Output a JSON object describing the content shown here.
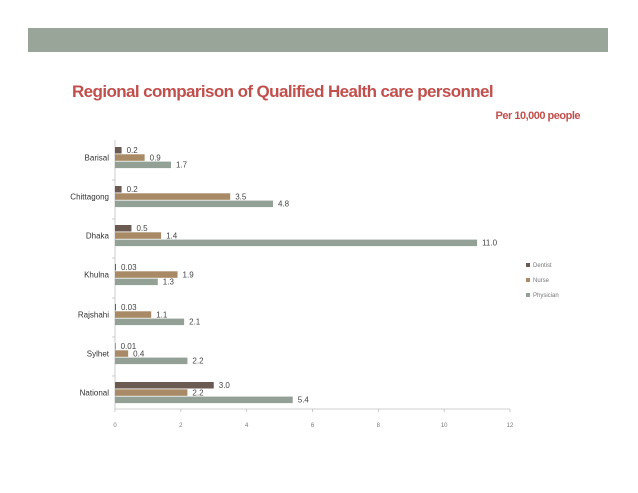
{
  "header": {
    "title": "Regional comparison of Qualified Health care personnel",
    "subtitle": "Per 10,000 people"
  },
  "colors": {
    "banner": "#99a598",
    "title": "#c0504d"
  },
  "chart_data": {
    "type": "bar",
    "orientation": "horizontal",
    "categories": [
      "Barisal",
      "Chittagong",
      "Dhaka",
      "Khulna",
      "Rajshahi",
      "Sylhet",
      "National"
    ],
    "series": [
      {
        "name": "Dentist",
        "color": "#6b5a52",
        "values": [
          0.2,
          0.2,
          0.5,
          0.03,
          0.03,
          0.01,
          3.0
        ],
        "labels": [
          "0.2",
          "0.2",
          "0.5",
          "0.03",
          "0.03",
          "0.01",
          "3.0"
        ]
      },
      {
        "name": "Nurse",
        "color": "#a88a66",
        "values": [
          0.9,
          3.5,
          1.4,
          1.9,
          1.1,
          0.4,
          2.2
        ],
        "labels": [
          "0.9",
          "3.5",
          "1.4",
          "1.9",
          "1.1",
          "0.4",
          "2.2"
        ]
      },
      {
        "name": "Physician",
        "color": "#93a095",
        "values": [
          1.7,
          4.8,
          11.0,
          1.3,
          2.1,
          2.2,
          5.4
        ],
        "labels": [
          "1.7",
          "4.8",
          "11.0",
          "1.3",
          "2.1",
          "2.2",
          "5.4"
        ]
      }
    ],
    "xlim": [
      0,
      12
    ],
    "xticks": [
      0,
      2,
      4,
      6,
      8,
      10,
      12
    ],
    "grid": false,
    "legend_position": "right"
  }
}
